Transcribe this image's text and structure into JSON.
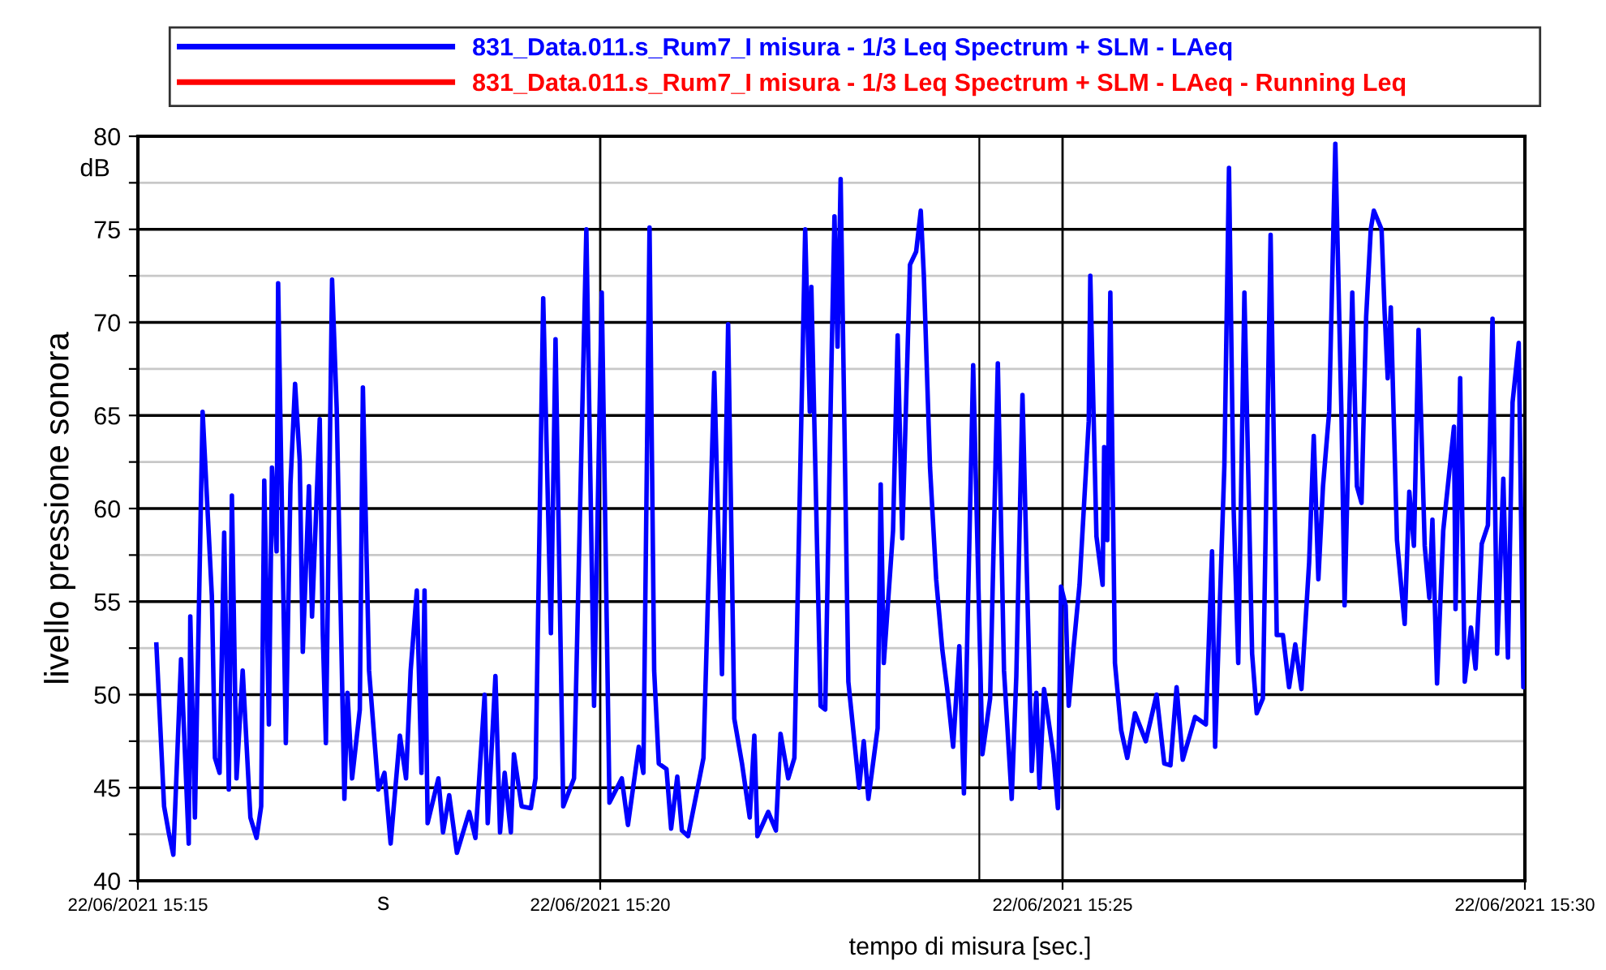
{
  "chart_data": {
    "type": "line",
    "ylabel": "livello pressione sonora",
    "xlabel": "tempo di misura [sec.]",
    "annotations": [
      "dB",
      "s"
    ],
    "xlim": [
      "2021-06-22T15:15",
      "2021-06-22T15:30"
    ],
    "xticks": [
      {
        "value": "2021-06-22T15:15",
        "label": "22/06/2021 15:15"
      },
      {
        "value": "2021-06-22T15:20",
        "label": "22/06/2021 15:20"
      },
      {
        "value": "2021-06-22T15:25",
        "label": "22/06/2021 15:25"
      },
      {
        "value": "2021-06-22T15:30",
        "label": "22/06/2021 15:30"
      }
    ],
    "ylim": [
      40,
      80
    ],
    "yticks": [
      40,
      {
        "value": 42.5,
        "label": null
      },
      45,
      {
        "value": 47.5,
        "label": null
      },
      50,
      {
        "value": 52.5,
        "label": null
      },
      55,
      {
        "value": 57.5,
        "label": null
      },
      60,
      {
        "value": 62.5,
        "label": null
      },
      65,
      {
        "value": 67.5,
        "label": null
      },
      70,
      {
        "value": 72.5,
        "label": null
      },
      75,
      {
        "value": 77.5,
        "label": null
      },
      80
    ],
    "ref_lines": [
      {
        "axis": "x",
        "value": "2021-06-22T15:24:06",
        "color": "#000000"
      }
    ],
    "grid": true,
    "legend": "top",
    "line_style": "solid",
    "marker": "none",
    "series": [
      {
        "name": "831_Data.011.s_Rum7_I misura - 1/3 Leq Spectrum + SLM - LAeq",
        "color": "#0000ff",
        "x": [
          "2021-06-22T15:15:12",
          "2021-06-22T15:15:17",
          "2021-06-22T15:15:20",
          "2021-06-22T15:15:23",
          "2021-06-22T15:15:28",
          "2021-06-22T15:15:33",
          "2021-06-22T15:15:34",
          "2021-06-22T15:15:37",
          "2021-06-22T15:15:39",
          "2021-06-22T15:15:42",
          "2021-06-22T15:15:48",
          "2021-06-22T15:15:50",
          "2021-06-22T15:15:53",
          "2021-06-22T15:15:56",
          "2021-06-22T15:15:59",
          "2021-06-22T15:16:01",
          "2021-06-22T15:16:04",
          "2021-06-22T15:16:08",
          "2021-06-22T15:16:13",
          "2021-06-22T15:16:17",
          "2021-06-22T15:16:20",
          "2021-06-22T15:16:22",
          "2021-06-22T15:16:25",
          "2021-06-22T15:16:27",
          "2021-06-22T15:16:30",
          "2021-06-22T15:16:31",
          "2021-06-22T15:16:36",
          "2021-06-22T15:16:39",
          "2021-06-22T15:16:42",
          "2021-06-22T15:16:45",
          "2021-06-22T15:16:47",
          "2021-06-22T15:16:51",
          "2021-06-22T15:16:53",
          "2021-06-22T15:16:58",
          "2021-06-22T15:17:00",
          "2021-06-22T15:17:02",
          "2021-06-22T15:17:06",
          "2021-06-22T15:17:09",
          "2021-06-22T15:17:14",
          "2021-06-22T15:17:16",
          "2021-06-22T15:17:19",
          "2021-06-22T15:17:24",
          "2021-06-22T15:17:26",
          "2021-06-22T15:17:30",
          "2021-06-22T15:17:36",
          "2021-06-22T15:17:40",
          "2021-06-22T15:17:44",
          "2021-06-22T15:17:50",
          "2021-06-22T15:17:54",
          "2021-06-22T15:17:57",
          "2021-06-22T15:18:01",
          "2021-06-22T15:18:04",
          "2021-06-22T15:18:06",
          "2021-06-22T15:18:08",
          "2021-06-22T15:18:15",
          "2021-06-22T15:18:18",
          "2021-06-22T15:18:22",
          "2021-06-22T15:18:27",
          "2021-06-22T15:18:35",
          "2021-06-22T15:18:39",
          "2021-06-22T15:18:45",
          "2021-06-22T15:18:47",
          "2021-06-22T15:18:52",
          "2021-06-22T15:18:55",
          "2021-06-22T15:18:58",
          "2021-06-22T15:19:02",
          "2021-06-22T15:19:04",
          "2021-06-22T15:19:09",
          "2021-06-22T15:19:15",
          "2021-06-22T15:19:18",
          "2021-06-22T15:19:23",
          "2021-06-22T15:19:28",
          "2021-06-22T15:19:31",
          "2021-06-22T15:19:36",
          "2021-06-22T15:19:43",
          "2021-06-22T15:19:51",
          "2021-06-22T15:19:56",
          "2021-06-22T15:20:01",
          "2021-06-22T15:20:06",
          "2021-06-22T15:20:14",
          "2021-06-22T15:20:18",
          "2021-06-22T15:20:25",
          "2021-06-22T15:20:28",
          "2021-06-22T15:20:32",
          "2021-06-22T15:20:35",
          "2021-06-22T15:20:38",
          "2021-06-22T15:20:43",
          "2021-06-22T15:20:46",
          "2021-06-22T15:20:50",
          "2021-06-22T15:20:53",
          "2021-06-22T15:20:57",
          "2021-06-22T15:21:03",
          "2021-06-22T15:21:07",
          "2021-06-22T15:21:14",
          "2021-06-22T15:21:19",
          "2021-06-22T15:21:23",
          "2021-06-22T15:21:27",
          "2021-06-22T15:21:32",
          "2021-06-22T15:21:37",
          "2021-06-22T15:21:40",
          "2021-06-22T15:21:42",
          "2021-06-22T15:21:49",
          "2021-06-22T15:21:54",
          "2021-06-22T15:21:57",
          "2021-06-22T15:22:02",
          "2021-06-22T15:22:06",
          "2021-06-22T15:22:13",
          "2021-06-22T15:22:16",
          "2021-06-22T15:22:17",
          "2021-06-22T15:22:23",
          "2021-06-22T15:22:26",
          "2021-06-22T15:22:30",
          "2021-06-22T15:22:32",
          "2021-06-22T15:22:34",
          "2021-06-22T15:22:36",
          "2021-06-22T15:22:41",
          "2021-06-22T15:22:48",
          "2021-06-22T15:22:51",
          "2021-06-22T15:22:54",
          "2021-06-22T15:23:00",
          "2021-06-22T15:23:02",
          "2021-06-22T15:23:04",
          "2021-06-22T15:23:10",
          "2021-06-22T15:23:13",
          "2021-06-22T15:23:16",
          "2021-06-22T15:23:21",
          "2021-06-22T15:23:25",
          "2021-06-22T15:23:28",
          "2021-06-22T15:23:30",
          "2021-06-22T15:23:34",
          "2021-06-22T15:23:38",
          "2021-06-22T15:23:42",
          "2021-06-22T15:23:45",
          "2021-06-22T15:23:49",
          "2021-06-22T15:23:53",
          "2021-06-22T15:23:56",
          "2021-06-22T15:24:02",
          "2021-06-22T15:24:08",
          "2021-06-22T15:24:13",
          "2021-06-22T15:24:18",
          "2021-06-22T15:24:22",
          "2021-06-22T15:24:27",
          "2021-06-22T15:24:30",
          "2021-06-22T15:24:34",
          "2021-06-22T15:24:40",
          "2021-06-22T15:24:43",
          "2021-06-22T15:24:45",
          "2021-06-22T15:24:48",
          "2021-06-22T15:24:54",
          "2021-06-22T15:24:57",
          "2021-06-22T15:24:59",
          "2021-06-22T15:25:02",
          "2021-06-22T15:25:04",
          "2021-06-22T15:25:07",
          "2021-06-22T15:25:11",
          "2021-06-22T15:25:17",
          "2021-06-22T15:25:18",
          "2021-06-22T15:25:22",
          "2021-06-22T15:25:26",
          "2021-06-22T15:25:27",
          "2021-06-22T15:25:29",
          "2021-06-22T15:25:31",
          "2021-06-22T15:25:34",
          "2021-06-22T15:25:38",
          "2021-06-22T15:25:42",
          "2021-06-22T15:25:47",
          "2021-06-22T15:25:54",
          "2021-06-22T15:26:01",
          "2021-06-22T15:26:06",
          "2021-06-22T15:26:10",
          "2021-06-22T15:26:14",
          "2021-06-22T15:26:18",
          "2021-06-22T15:26:26",
          "2021-06-22T15:26:33",
          "2021-06-22T15:26:37",
          "2021-06-22T15:26:39",
          "2021-06-22T15:26:45",
          "2021-06-22T15:26:48",
          "2021-06-22T15:26:51",
          "2021-06-22T15:26:54",
          "2021-06-22T15:26:58",
          "2021-06-22T15:27:03",
          "2021-06-22T15:27:06",
          "2021-06-22T15:27:10",
          "2021-06-22T15:27:15",
          "2021-06-22T15:27:19",
          "2021-06-22T15:27:23",
          "2021-06-22T15:27:27",
          "2021-06-22T15:27:31",
          "2021-06-22T15:27:35",
          "2021-06-22T15:27:40",
          "2021-06-22T15:27:43",
          "2021-06-22T15:27:46",
          "2021-06-22T15:27:49",
          "2021-06-22T15:27:53",
          "2021-06-22T15:27:57",
          "2021-06-22T15:28:01",
          "2021-06-22T15:28:03",
          "2021-06-22T15:28:08",
          "2021-06-22T15:28:11",
          "2021-06-22T15:28:14",
          "2021-06-22T15:28:17",
          "2021-06-22T15:28:20",
          "2021-06-22T15:28:22",
          "2021-06-22T15:28:27",
          "2021-06-22T15:28:29",
          "2021-06-22T15:28:31",
          "2021-06-22T15:28:33",
          "2021-06-22T15:28:37",
          "2021-06-22T15:28:42",
          "2021-06-22T15:28:45",
          "2021-06-22T15:28:48",
          "2021-06-22T15:28:51",
          "2021-06-22T15:28:55",
          "2021-06-22T15:28:58",
          "2021-06-22T15:29:00",
          "2021-06-22T15:29:03",
          "2021-06-22T15:29:07",
          "2021-06-22T15:29:14",
          "2021-06-22T15:29:15",
          "2021-06-22T15:29:18",
          "2021-06-22T15:29:21",
          "2021-06-22T15:29:25",
          "2021-06-22T15:29:28",
          "2021-06-22T15:29:32",
          "2021-06-22T15:29:36",
          "2021-06-22T15:29:39",
          "2021-06-22T15:29:42",
          "2021-06-22T15:29:46",
          "2021-06-22T15:29:49",
          "2021-06-22T15:29:52",
          "2021-06-22T15:29:56",
          "2021-06-22T15:29:59",
          "2021-06-22T15:30:00"
        ],
        "values": [
          52.7,
          44.0,
          42.6,
          41.4,
          51.9,
          42.0,
          54.2,
          43.4,
          52.0,
          65.2,
          55.3,
          46.6,
          45.8,
          58.7,
          44.9,
          60.7,
          45.5,
          51.3,
          43.4,
          42.3,
          44.0,
          61.5,
          48.4,
          62.2,
          57.7,
          72.1,
          47.4,
          61.3,
          66.7,
          62.6,
          52.3,
          61.2,
          54.2,
          64.8,
          53.2,
          47.4,
          72.3,
          65.4,
          44.4,
          50.1,
          45.5,
          49.2,
          66.5,
          51.3,
          44.9,
          45.8,
          42.0,
          47.8,
          45.5,
          51.3,
          55.6,
          45.8,
          55.6,
          43.1,
          45.5,
          42.6,
          44.6,
          41.5,
          43.7,
          42.3,
          50.0,
          43.1,
          51.0,
          42.6,
          45.8,
          42.6,
          46.8,
          44.0,
          43.9,
          45.5,
          71.3,
          53.3,
          69.1,
          44.0,
          45.5,
          75.0,
          49.4,
          71.6,
          44.2,
          45.5,
          43.0,
          47.2,
          45.8,
          75.1,
          51.3,
          46.3,
          46.0,
          42.8,
          45.6,
          42.7,
          42.4,
          44.9,
          46.6,
          67.3,
          51.1,
          69.9,
          48.7,
          46.3,
          43.4,
          47.8,
          42.4,
          43.7,
          42.7,
          47.9,
          45.5,
          46.6,
          75.0,
          65.2,
          71.9,
          49.4,
          49.2,
          67.6,
          75.7,
          68.7,
          77.7,
          50.7,
          45.0,
          47.5,
          44.4,
          48.2,
          61.3,
          51.7,
          58.8,
          69.3,
          58.4,
          73.1,
          73.8,
          76.0,
          72.5,
          62.2,
          56.2,
          52.4,
          50.4,
          47.2,
          52.6,
          44.7,
          67.7,
          46.8,
          49.8,
          67.8,
          51.3,
          44.4,
          51.0,
          66.1,
          45.9,
          50.1,
          45.0,
          50.3,
          46.8,
          43.9,
          55.8,
          54.8,
          49.4,
          52.4,
          55.9,
          64.7,
          72.5,
          58.5,
          55.9,
          63.3,
          58.3,
          71.6,
          51.7,
          48.1,
          46.6,
          49.0,
          47.5,
          50.0,
          46.3,
          46.2,
          50.4,
          46.5,
          48.8,
          48.4,
          57.7,
          47.2,
          62.3,
          78.3,
          60.0,
          51.7,
          71.6,
          52.2,
          49.0,
          49.8,
          74.7,
          53.2,
          53.2,
          50.4,
          52.7,
          50.3,
          57.1,
          63.9,
          56.2,
          61.2,
          65.2,
          79.6,
          64.9,
          54.8,
          71.6,
          61.2,
          60.3,
          70.3,
          75.0,
          76.0,
          75.0,
          70.5,
          67.0,
          70.8,
          58.3,
          53.8,
          60.9,
          58.0,
          69.6,
          58.0,
          55.2,
          59.4,
          50.6,
          58.8,
          64.4,
          54.6,
          67.0,
          50.7,
          53.6,
          51.4,
          58.1,
          59.1,
          70.2,
          52.2,
          61.6,
          52.0,
          65.7,
          68.9,
          50.4,
          50.7
        ]
      },
      {
        "name": "831_Data.011.s_Rum7_I misura - 1/3 Leq Spectrum + SLM - LAeq - Running Leq",
        "color": "#ff0000"
      }
    ]
  }
}
